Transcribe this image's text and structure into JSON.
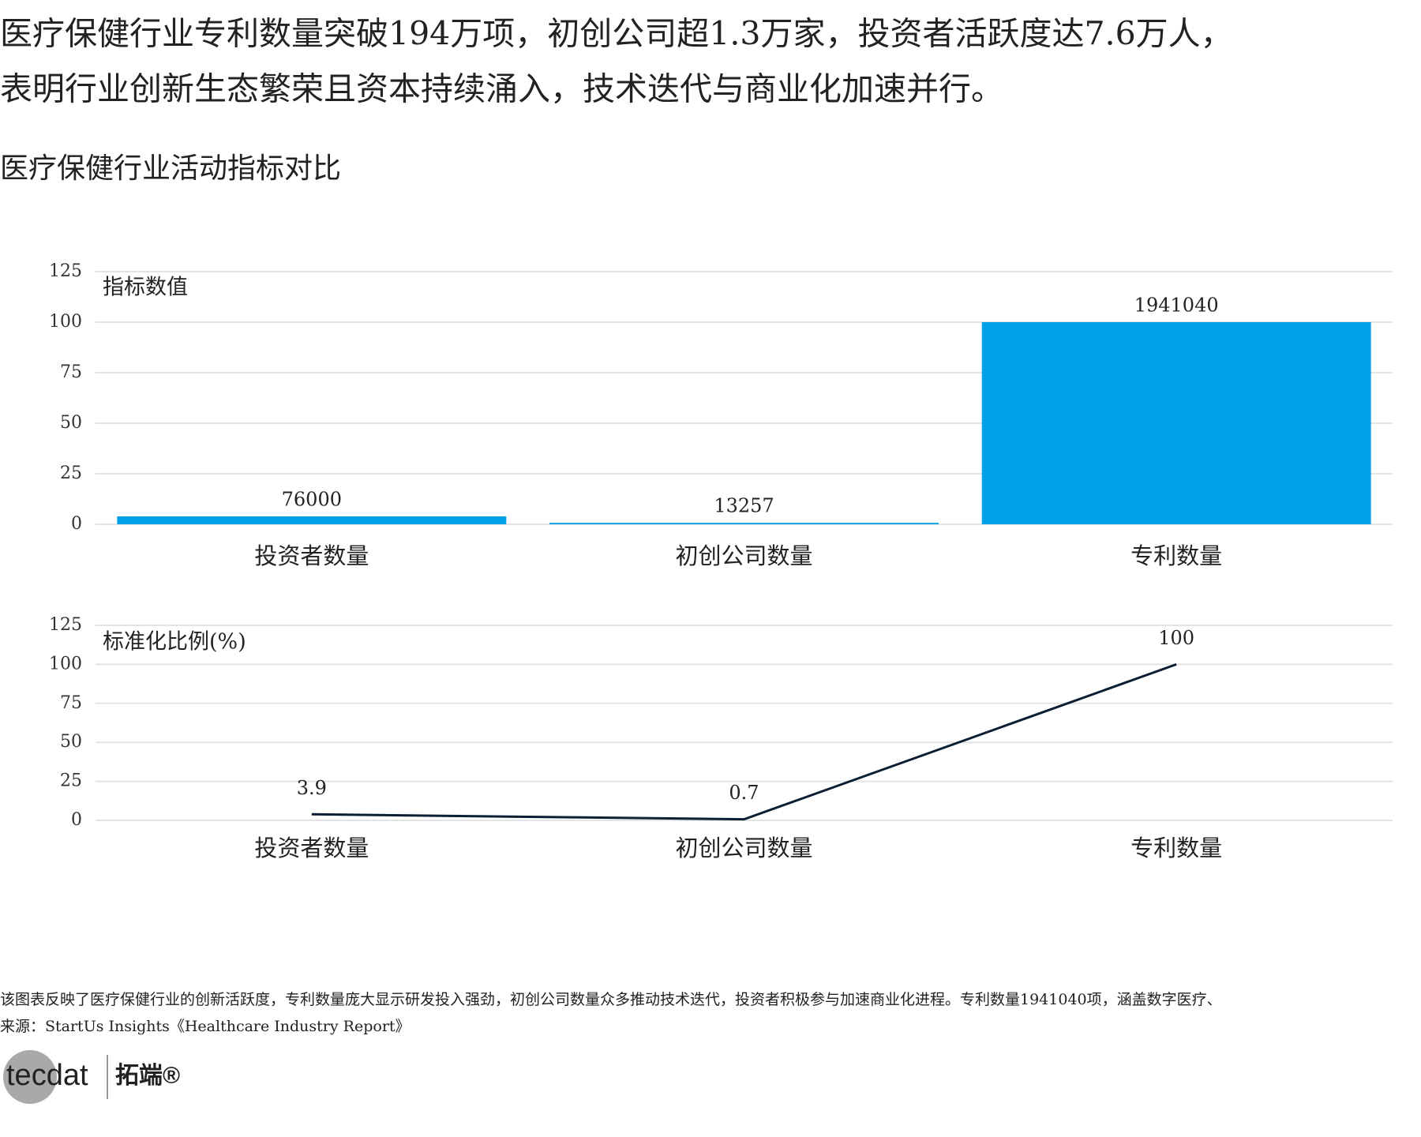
{
  "header": {
    "title_lines": [
      "医疗保健行业专利数量突破194万项，初创公司超1.3万家，投资者活跃度达7.6万人，",
      "表明行业创新生态繁荣且资本持续涌入，技术迭代与商业化加速并行。"
    ],
    "subtitle": "医疗保健行业活动指标对比"
  },
  "chart_data": [
    {
      "type": "bar",
      "y_label": "指标数值",
      "categories": [
        "投资者数量",
        "初创公司数量",
        "专利数量"
      ],
      "values": [
        3.9,
        0.7,
        100
      ],
      "counts": [
        76000,
        13257,
        1941040
      ],
      "color": "#00a0e9",
      "ylim": [
        0,
        125
      ],
      "yticks": [
        0,
        25,
        50,
        75,
        100,
        125
      ],
      "grid": true
    },
    {
      "type": "line",
      "y_label": "标准化比例(%)",
      "categories": [
        "投资者数量",
        "初创公司数量",
        "专利数量"
      ],
      "values": [
        3.9,
        0.7,
        100
      ],
      "color": "#0b1f33",
      "ylim": [
        0,
        125
      ],
      "yticks": [
        0,
        25,
        50,
        75,
        100,
        125
      ],
      "grid": true
    }
  ],
  "footer": {
    "note": "该图表反映了医疗保健行业的创新活跃度，专利数量庞大显示研发投入强劲，初创公司数量众多推动技术迭代，投资者积极参与加速商业化进程。专利数量1941040项，涵盖数字医疗、",
    "source": "来源：StartUs Insights《Healthcare Industry Report》",
    "logo_left": "tecdat",
    "logo_right": "拓端®"
  }
}
